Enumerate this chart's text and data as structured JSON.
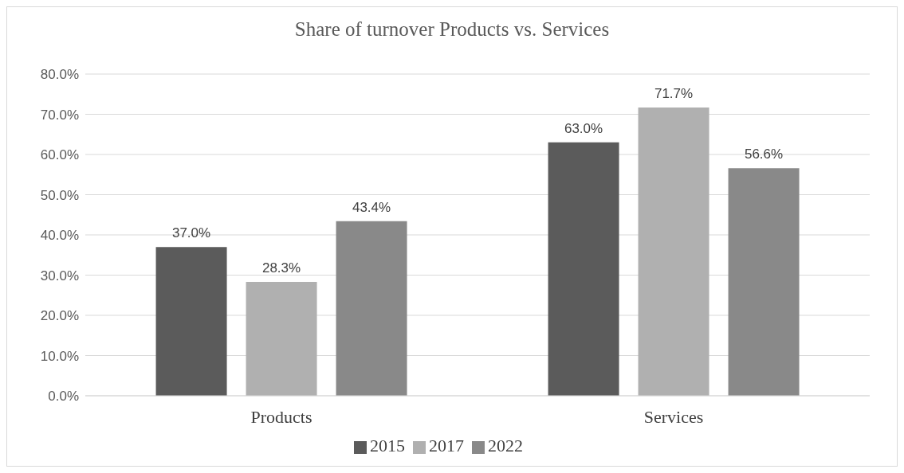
{
  "chart_data": {
    "type": "bar",
    "title": "Share of turnover Products vs. Services",
    "categories": [
      "Products",
      "Services"
    ],
    "series": [
      {
        "name": "2015",
        "color": "#5b5b5b",
        "values": [
          37.0,
          63.0
        ],
        "value_labels": [
          "37.0%",
          "63.0%"
        ]
      },
      {
        "name": "2017",
        "color": "#b0b0b0",
        "values": [
          28.3,
          71.7
        ],
        "value_labels": [
          "28.3%",
          "71.7%"
        ]
      },
      {
        "name": "2022",
        "color": "#898989",
        "values": [
          43.4,
          56.6
        ],
        "value_labels": [
          "43.4%",
          "56.6%"
        ]
      }
    ],
    "ylim": [
      0,
      80
    ],
    "yticks": [
      {
        "value": 0,
        "label": "0.0%"
      },
      {
        "value": 10,
        "label": "10.0%"
      },
      {
        "value": 20,
        "label": "20.0%"
      },
      {
        "value": 30,
        "label": "30.0%"
      },
      {
        "value": 40,
        "label": "40.0%"
      },
      {
        "value": 50,
        "label": "50.0%"
      },
      {
        "value": 60,
        "label": "60.0%"
      },
      {
        "value": 70,
        "label": "70.0%"
      },
      {
        "value": 80,
        "label": "80.0%"
      }
    ],
    "grid": "y",
    "legend": "bottom"
  }
}
